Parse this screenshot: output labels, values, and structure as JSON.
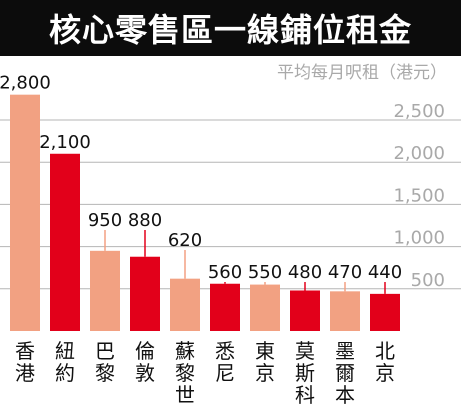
{
  "header": {
    "title": "核心零售區一線鋪位租金"
  },
  "chart_data": {
    "type": "bar",
    "ylabel": "平均每月呎租（港元）",
    "yticks": [
      500,
      1000,
      1500,
      2000,
      2500
    ],
    "ytick_labels": [
      "500",
      "1,000",
      "1,500",
      "2,000",
      "2,500"
    ],
    "ylim": [
      0,
      2850
    ],
    "grid": true,
    "categories": [
      "香港",
      "紐約",
      "巴黎",
      "倫敦",
      "蘇黎世",
      "悉尼",
      "東京",
      "莫斯科",
      "墨爾本",
      "北京"
    ],
    "values": [
      2800,
      2100,
      950,
      880,
      620,
      560,
      550,
      480,
      470,
      440
    ],
    "value_labels": [
      "2,800",
      "2,100",
      "950",
      "880",
      "620",
      "560",
      "550",
      "480",
      "470",
      "440"
    ],
    "bar_colors": [
      "#f2a182",
      "#e2001a",
      "#f2a182",
      "#e2001a",
      "#f2a182",
      "#e2001a",
      "#f2a182",
      "#e2001a",
      "#f2a182",
      "#e2001a"
    ],
    "gridline_color": "#b5b5b5",
    "tick_label_color": "#a9a9a9"
  }
}
